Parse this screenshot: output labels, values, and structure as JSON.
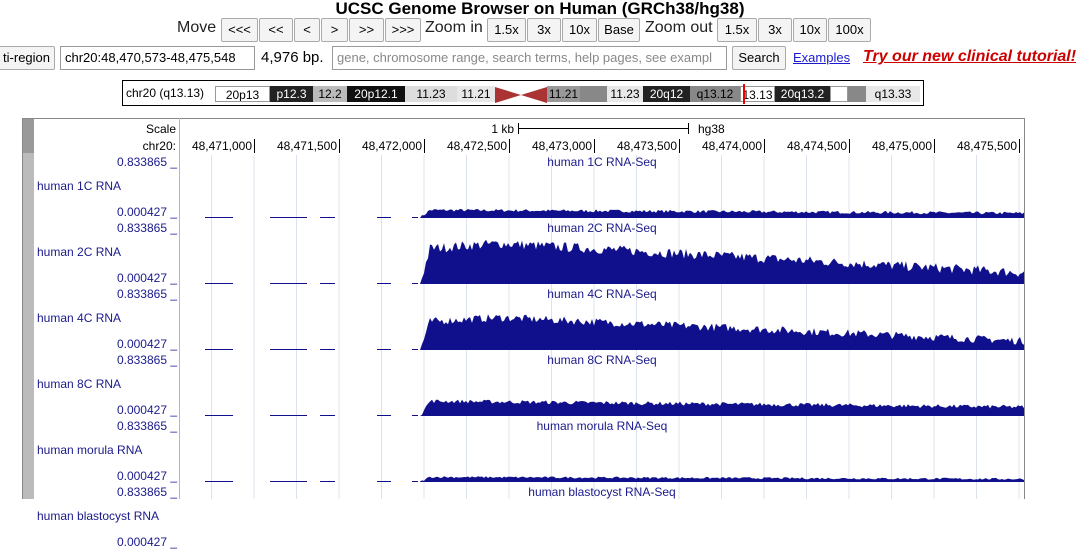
{
  "header": {
    "title": "UCSC Genome Browser on Human (GRCh38/hg38)"
  },
  "nav": {
    "move_label": "Move",
    "move_buttons": [
      "<<<",
      "<<",
      "<",
      ">",
      ">>",
      ">>>"
    ],
    "zoom_in_label": "Zoom in",
    "zoom_in_buttons": [
      "1.5x",
      "3x",
      "10x",
      "Base"
    ],
    "zoom_out_label": "Zoom out",
    "zoom_out_buttons": [
      "1.5x",
      "3x",
      "10x",
      "100x"
    ]
  },
  "search_bar": {
    "multi_region_button": "ti-region",
    "position": "chr20:48,470,573-48,475,548",
    "size": "4,976 bp.",
    "search_placeholder": "gene, chromosome range, search terms, help pages, see exampl",
    "search_button": "Search",
    "examples_link": "Examples",
    "tutorial_link": "Try our new clinical tutorial!"
  },
  "ideogram": {
    "label": "chr20 (q13.13)",
    "bands": [
      "20p13",
      "p12.3",
      "12.2",
      "20p12.1",
      "11.23",
      "11.21",
      "11.21",
      "11.23",
      "20q12",
      "q13.12",
      "13.13",
      "20q13.2",
      "q13.33"
    ]
  },
  "ruler": {
    "scale_label": "Scale",
    "scale_bar": "1 kb",
    "assembly": "hg38",
    "chrom_label": "chr20:",
    "positions": [
      "48,471,000",
      "48,471,500",
      "48,472,000",
      "48,472,500",
      "48,473,000",
      "48,473,500",
      "48,474,000",
      "48,474,500",
      "48,475,000",
      "48,475,500"
    ]
  },
  "tracks": [
    {
      "name": "human 1C RNA",
      "title": "human 1C RNA-Seq",
      "max_label": "0.833865 _",
      "min_label": "0.000427 _"
    },
    {
      "name": "human 2C RNA",
      "title": "human 2C RNA-Seq",
      "max_label": "0.833865 _",
      "min_label": "0.000427 _"
    },
    {
      "name": "human 4C RNA",
      "title": "human 4C RNA-Seq",
      "max_label": "0.833865 _",
      "min_label": "0.000427 _"
    },
    {
      "name": "human 8C RNA",
      "title": "human 8C RNA-Seq",
      "max_label": "0.833865 _",
      "min_label": "0.000427 _"
    },
    {
      "name": "human morula RNA",
      "title": "human morula RNA-Seq",
      "max_label": "0.833865 _",
      "min_label": "0.000427 _"
    },
    {
      "name": "human blastocyst RNA",
      "title": "human blastocyst RNA-Seq",
      "max_label": "0.833865 _",
      "min_label": "0.000427 _"
    }
  ]
}
